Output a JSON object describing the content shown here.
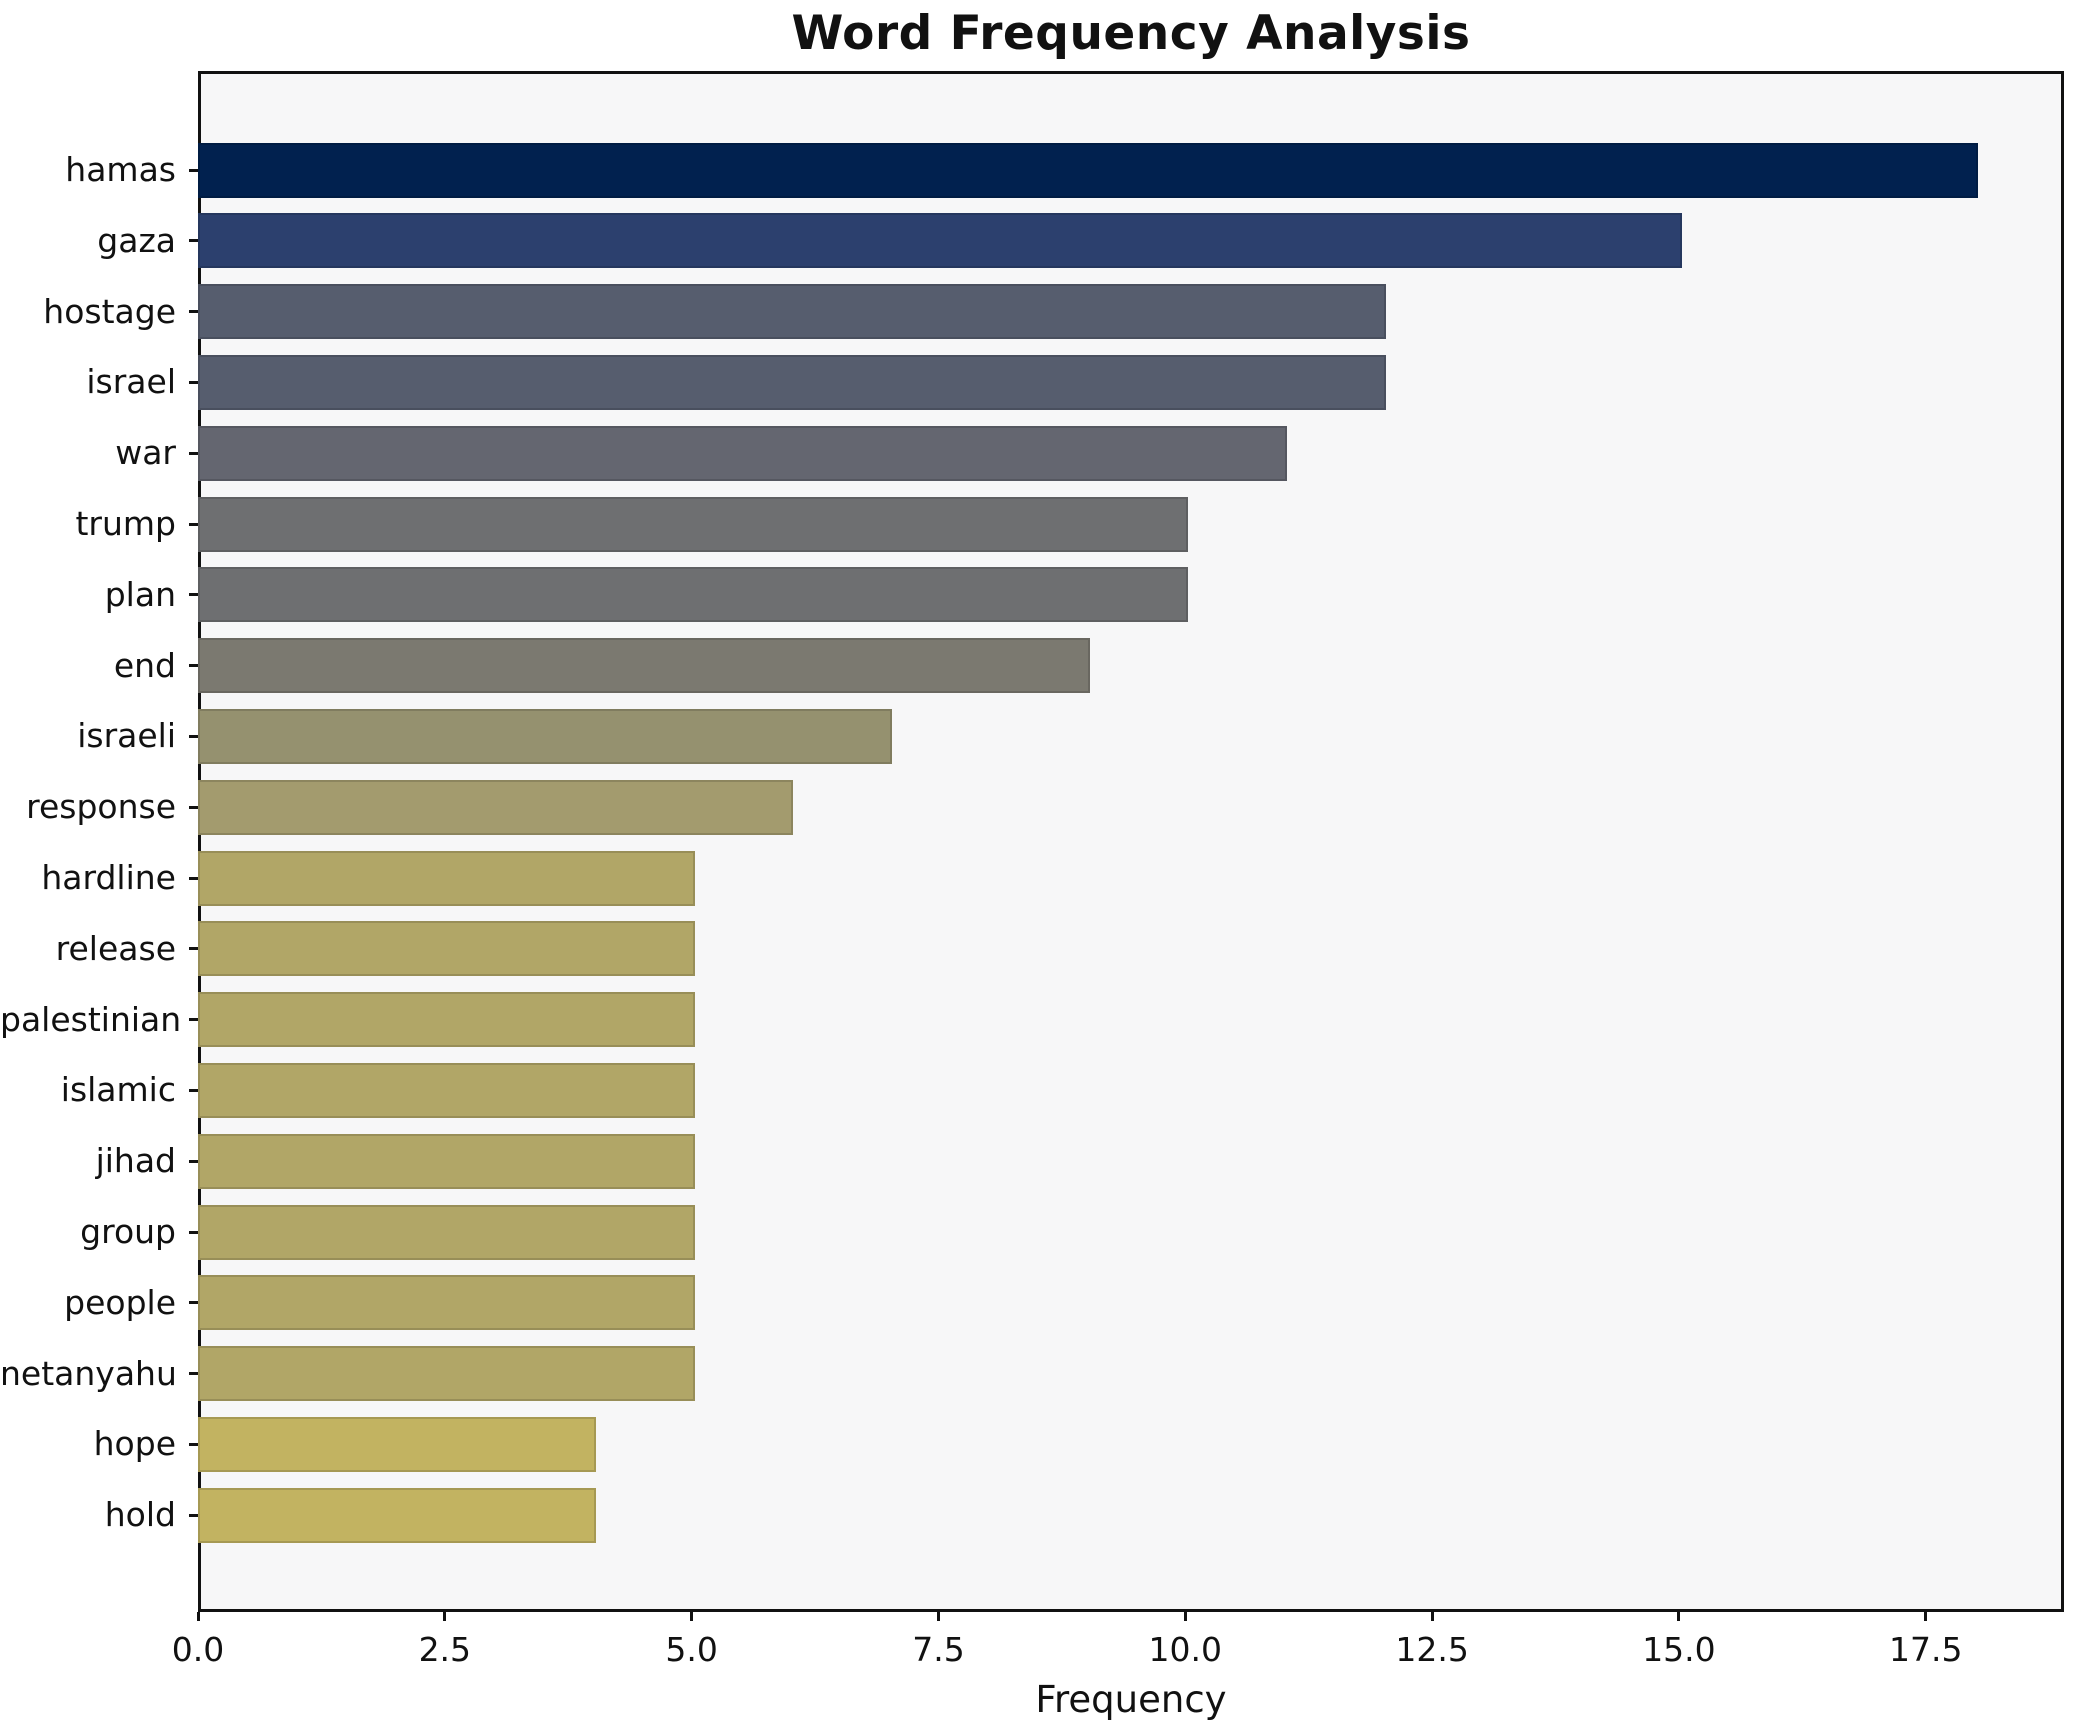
{
  "title": "Word Frequency Analysis",
  "chart_data": {
    "type": "bar",
    "orientation": "horizontal",
    "title": "Word Frequency Analysis",
    "xlabel": "Frequency",
    "ylabel": "",
    "categories": [
      "hamas",
      "gaza",
      "hostage",
      "israel",
      "war",
      "trump",
      "plan",
      "end",
      "israeli",
      "response",
      "hardline",
      "release",
      "palestinian",
      "islamic",
      "jihad",
      "group",
      "people",
      "netanyahu",
      "hope",
      "hold"
    ],
    "values": [
      18,
      15,
      12,
      12,
      11,
      10,
      10,
      9,
      7,
      6,
      5,
      5,
      5,
      5,
      5,
      5,
      5,
      5,
      4,
      4
    ],
    "bar_colors": [
      "#01214f",
      "#2c406e",
      "#565d6e",
      "#565d6e",
      "#646670",
      "#6e6f71",
      "#6e6f71",
      "#7b7970",
      "#95916f",
      "#a39b6e",
      "#b1a667",
      "#b1a667",
      "#b1a667",
      "#b1a667",
      "#b1a667",
      "#b1a667",
      "#b1a667",
      "#b1a667",
      "#c2b361",
      "#c2b361"
    ],
    "xlim": [
      0,
      18.9
    ],
    "xticks": [
      0,
      2.5,
      5,
      7.5,
      10,
      12.5,
      15,
      17.5
    ],
    "xtick_labels": [
      "0.0",
      "2.5",
      "5.0",
      "7.5",
      "10.0",
      "12.5",
      "15.0",
      "17.5"
    ],
    "grid": false,
    "legend": null,
    "colors": {
      "figure_bg": "#ffffff",
      "axes_bg": "#f7f7f8",
      "spine": "#111111",
      "text": "#111111"
    }
  }
}
